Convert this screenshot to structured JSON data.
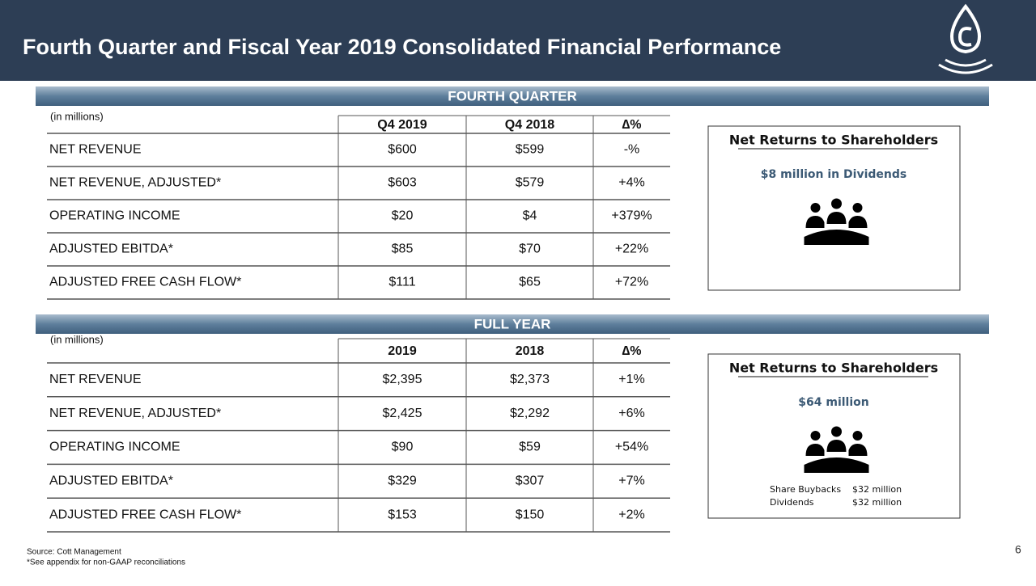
{
  "header": {
    "title": "Fourth Quarter and Fiscal Year 2019 Consolidated Financial Performance"
  },
  "sections": [
    {
      "banner": "FOURTH QUARTER",
      "unit": "(in millions)",
      "columns": [
        "Q4 2019",
        "Q4 2018",
        "∆%"
      ],
      "rows": [
        [
          "NET REVENUE",
          "$600",
          "$599",
          "-%"
        ],
        [
          "NET REVENUE, ADJUSTED*",
          "$603",
          "$579",
          "+4%"
        ],
        [
          "OPERATING INCOME",
          "$20",
          "$4",
          "+379%"
        ],
        [
          "ADJUSTED EBITDA*",
          "$85",
          "$70",
          "+22%"
        ],
        [
          "ADJUSTED FREE CASH FLOW*",
          "$111",
          "$65",
          "+72%"
        ]
      ],
      "box": {
        "title": "Net Returns to Shareholders",
        "subtitle": "$8 million in Dividends"
      }
    },
    {
      "banner": "FULL YEAR",
      "unit": "(in millions)",
      "columns": [
        "2019",
        "2018",
        "∆%"
      ],
      "rows": [
        [
          "NET REVENUE",
          "$2,395",
          "$2,373",
          "+1%"
        ],
        [
          "NET REVENUE, ADJUSTED*",
          "$2,425",
          "$2,292",
          "+6%"
        ],
        [
          "OPERATING INCOME",
          "$90",
          "$59",
          "+54%"
        ],
        [
          "ADJUSTED EBITDA*",
          "$329",
          "$307",
          "+7%"
        ],
        [
          "ADJUSTED FREE CASH FLOW*",
          "$153",
          "$150",
          "+2%"
        ]
      ],
      "box": {
        "title": "Net Returns to Shareholders",
        "subtitle": "$64 million",
        "details": [
          [
            "Share Buybacks",
            "$32 million"
          ],
          [
            "Dividends",
            "$32 million"
          ]
        ]
      }
    }
  ],
  "footer": {
    "source": "Source:  Cott Management",
    "note": "*See appendix for non-GAAP reconciliations",
    "page": "6"
  }
}
